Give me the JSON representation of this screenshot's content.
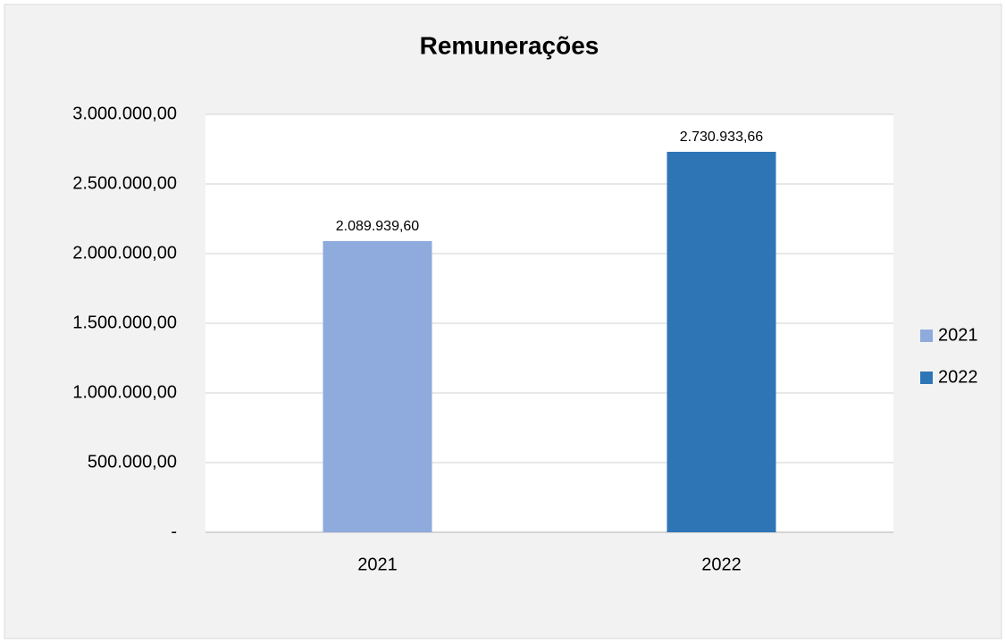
{
  "chart_data": {
    "type": "bar",
    "title": "Remunerações",
    "categories": [
      "2021",
      "2022"
    ],
    "series": [
      {
        "name": "2021",
        "color": "#8faadc",
        "values": [
          2089939.6,
          null
        ],
        "value_labels": [
          "2.089.939,60",
          null
        ]
      },
      {
        "name": "2022",
        "color": "#2e75b6",
        "values": [
          null,
          2730933.66
        ],
        "value_labels": [
          null,
          "2.730.933,66"
        ]
      }
    ],
    "ylim": [
      0,
      3000000
    ],
    "yticks": [
      {
        "value": 0,
        "label": "-"
      },
      {
        "value": 500000,
        "label": "500.000,00"
      },
      {
        "value": 1000000,
        "label": "1.000.000,00"
      },
      {
        "value": 1500000,
        "label": "1.500.000,00"
      },
      {
        "value": 2000000,
        "label": "2.000.000,00"
      },
      {
        "value": 2500000,
        "label": "2.500.000,00"
      },
      {
        "value": 3000000,
        "label": "3.000.000,00"
      }
    ],
    "grid": true,
    "legend": "right"
  }
}
